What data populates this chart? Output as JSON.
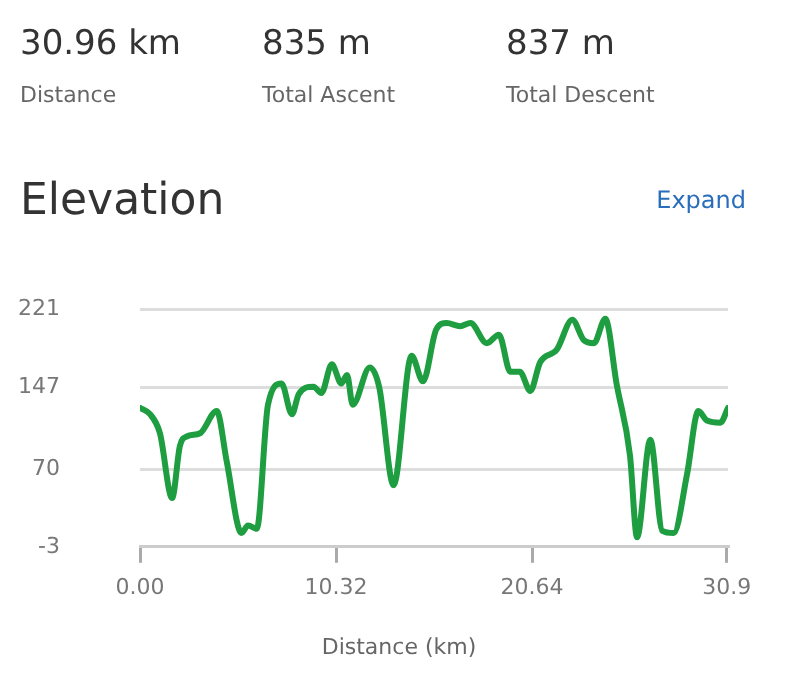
{
  "chart_data": {
    "type": "line",
    "title": "Elevation",
    "xlabel": "Distance (km)",
    "annotations": [
      "30.96 km",
      "Distance",
      "835 m",
      "Total Ascent",
      "837 m",
      "Total Descent",
      "Expand"
    ],
    "x": [
      0,
      0.53,
      1.05,
      1.69,
      2.1,
      2.46,
      3.16,
      4.04,
      4.57,
      5.34,
      5.69,
      6.15,
      6.74,
      7.45,
      8.0,
      8.36,
      9.13,
      9.55,
      10.1,
      10.6,
      10.9,
      11.2,
      12.1,
      12.6,
      13.35,
      14.3,
      14.9,
      15.6,
      16.15,
      16.86,
      17.4,
      18.26,
      18.9,
      19.5,
      20.0,
      20.55,
      21.07,
      21.95,
      22.76,
      23.36,
      23.9,
      24.5,
      25.1,
      25.8,
      26.17,
      26.87,
      27.5,
      28.1,
      28.8,
      29.4,
      29.85,
      30.56,
      30.96
    ],
    "series": [
      {
        "color": "#1e9e40",
        "values": [
          128,
          122,
          104,
          43,
          92,
          101,
          104,
          125,
          77,
          10,
          17,
          14,
          131,
          151,
          122,
          141,
          148,
          142,
          169,
          151,
          159,
          131,
          166,
          147,
          55,
          177,
          153,
          202,
          208,
          205,
          208,
          189,
          197,
          162,
          162,
          144,
          171,
          183,
          211,
          192,
          189,
          212,
          150,
          83,
          6,
          98,
          12,
          10,
          65,
          125,
          116,
          114,
          128
        ]
      }
    ],
    "xlim": [
      0,
      30.96
    ],
    "xticks": [
      {
        "value": 0,
        "label": "0.00"
      },
      10.32,
      20.64,
      30.9
    ],
    "ylim": [
      -3,
      221
    ],
    "yticks": [
      -3,
      70,
      147,
      221
    ],
    "grid": "y",
    "legend": false,
    "marker": "none",
    "line_style": "solid"
  }
}
